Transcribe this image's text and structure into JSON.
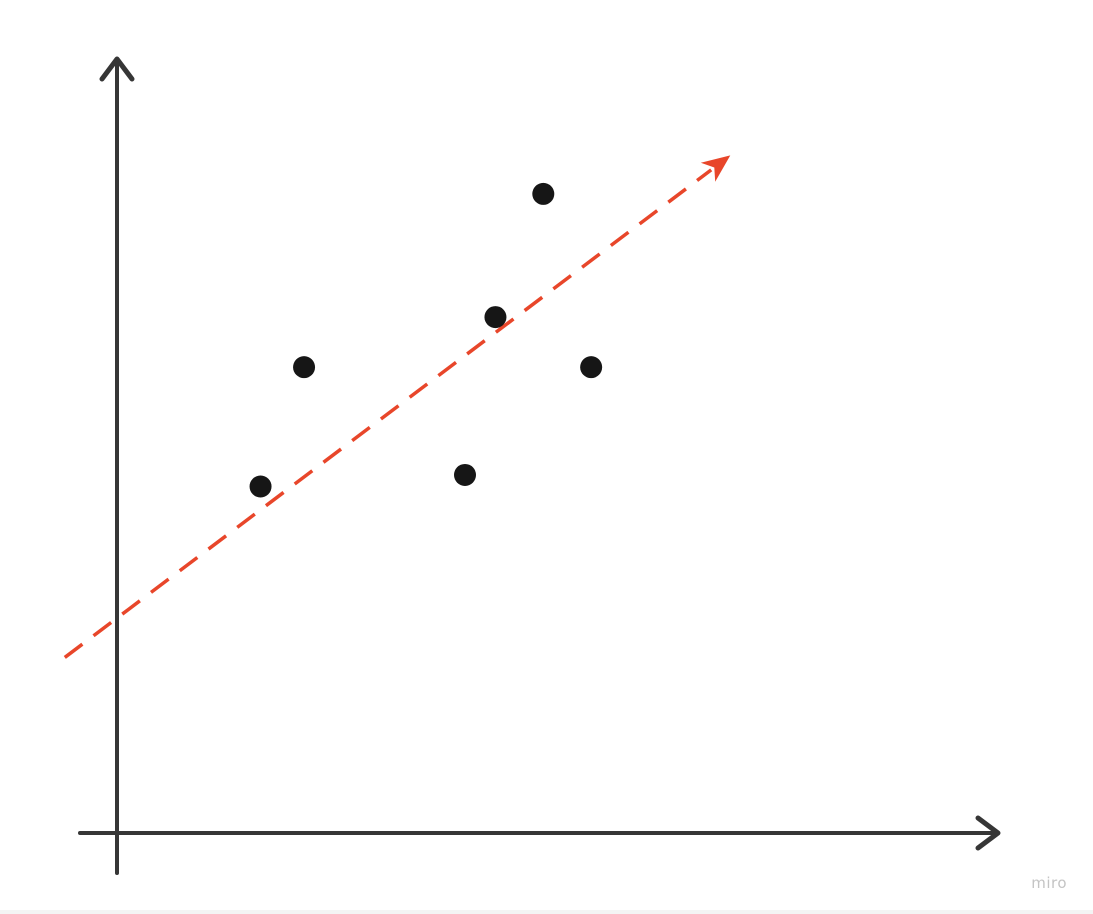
{
  "colors": {
    "axis": "#363636",
    "point": "#161616",
    "trend": "#e8462a",
    "watermark": "#c4c4c4"
  },
  "watermark": "miro",
  "chart_data": {
    "type": "scatter",
    "title": "",
    "xlabel": "",
    "ylabel": "",
    "grid": false,
    "legend": "none",
    "xlim": [
      0,
      100
    ],
    "ylim": [
      0,
      100
    ],
    "points": [
      {
        "x": 16.5,
        "y": 45.0
      },
      {
        "x": 21.5,
        "y": 60.5
      },
      {
        "x": 40.0,
        "y": 46.5
      },
      {
        "x": 43.5,
        "y": 67.0
      },
      {
        "x": 49.0,
        "y": 83.0
      },
      {
        "x": 54.5,
        "y": 60.5
      }
    ],
    "trend_line": {
      "style": "dashed",
      "arrow": "end",
      "start": {
        "x": -6.0,
        "y": 22.8
      },
      "end": {
        "x": 70.5,
        "y": 88.0
      }
    }
  }
}
